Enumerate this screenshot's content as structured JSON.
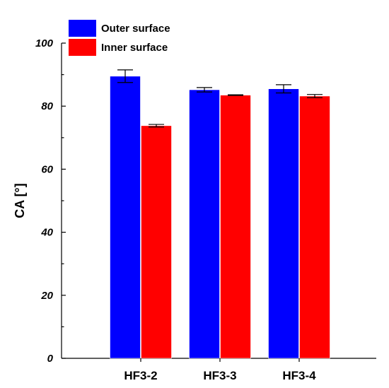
{
  "chart_data": {
    "type": "bar",
    "categories": [
      "HF3-2",
      "HF3-3",
      "HF3-4"
    ],
    "series": [
      {
        "name": "Outer surface",
        "color": "#0000ff",
        "values": [
          89.5,
          85.2,
          85.5
        ],
        "errors": [
          2.0,
          0.7,
          1.3
        ]
      },
      {
        "name": "Inner surface",
        "color": "#ff0000",
        "values": [
          73.8,
          83.5,
          83.2
        ],
        "errors": [
          0.4,
          0.1,
          0.5
        ]
      }
    ],
    "title": "",
    "xlabel": "",
    "ylabel": "CA [°]",
    "ylim": [
      0,
      100
    ],
    "yticks": [
      0,
      20,
      40,
      60,
      80,
      100
    ],
    "ytick_labels": [
      "0",
      "20",
      "40",
      "60",
      "80",
      "100"
    ],
    "grid": false,
    "legend_position": "top-left"
  }
}
